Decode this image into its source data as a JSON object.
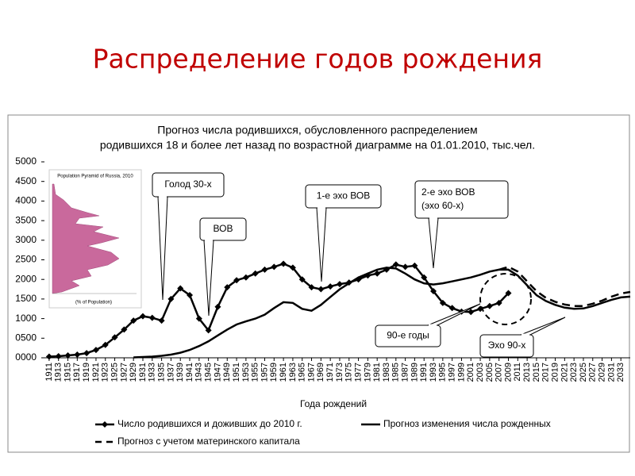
{
  "slide_title": "Распределение годов рождения",
  "chart_data": {
    "type": "line",
    "title_lines": [
      "Прогноз числа родившихся, обусловленного распределением",
      "родившихся 18 и более лет назад  по возрастной диаграмме на 01.01.2010, тыс.чел."
    ],
    "x_label": "Года рождений",
    "x": [
      1911,
      1913,
      1915,
      1917,
      1919,
      1921,
      1923,
      1925,
      1927,
      1929,
      1931,
      1933,
      1935,
      1937,
      1939,
      1941,
      1943,
      1945,
      1947,
      1949,
      1951,
      1953,
      1955,
      1957,
      1959,
      1961,
      1963,
      1965,
      1967,
      1969,
      1971,
      1973,
      1975,
      1977,
      1979,
      1981,
      1983,
      1985,
      1987,
      1989,
      1991,
      1993,
      1995,
      1997,
      1999,
      2001,
      2003,
      2005,
      2007,
      2009,
      2011,
      2013,
      2015,
      2017,
      2019,
      2021,
      2023,
      2025,
      2027,
      2029,
      2031,
      2033,
      2035
    ],
    "xlim": [
      1910,
      2035
    ],
    "xticks": [
      1911,
      1913,
      1915,
      1917,
      1919,
      1921,
      1923,
      1925,
      1927,
      1929,
      1931,
      1933,
      1935,
      1937,
      1939,
      1941,
      1943,
      1945,
      1947,
      1949,
      1951,
      1953,
      1955,
      1957,
      1959,
      1961,
      1963,
      1965,
      1967,
      1969,
      1971,
      1973,
      1975,
      1977,
      1979,
      1981,
      1983,
      1985,
      1987,
      1989,
      1991,
      1993,
      1995,
      1997,
      1999,
      2001,
      2003,
      2005,
      2007,
      2009,
      2011,
      2013,
      2015,
      2017,
      2019,
      2021,
      2023,
      2025,
      2027,
      2029,
      2031,
      2033
    ],
    "ylim": [
      0,
      5000
    ],
    "yticks": [
      {
        "value": 0,
        "label": "0000"
      },
      {
        "value": 500,
        "label": "0500"
      },
      1000,
      1500,
      2000,
      2500,
      3000,
      3500,
      4000,
      4500,
      5000
    ],
    "series": [
      {
        "name": "Число родившихся и доживших до 2010 г.",
        "color": "#000000",
        "marker": "diamond",
        "dash": false,
        "values": [
          30,
          40,
          60,
          80,
          120,
          200,
          330,
          520,
          720,
          950,
          1060,
          1020,
          950,
          1500,
          1770,
          1600,
          1000,
          700,
          1300,
          1800,
          1980,
          2050,
          2150,
          2250,
          2320,
          2400,
          2300,
          2000,
          1800,
          1750,
          1820,
          1880,
          1920,
          2000,
          2100,
          2150,
          2250,
          2380,
          2320,
          2350,
          2050,
          1700,
          1400,
          1270,
          1180,
          1170,
          1250,
          1320,
          1400,
          1650,
          null,
          null,
          null,
          null,
          null,
          null,
          null,
          null,
          null,
          null,
          null,
          null,
          null
        ]
      },
      {
        "name": "Прогноз изменения числа рожденных",
        "color": "#000000",
        "marker": "none",
        "dash": false,
        "values": [
          null,
          null,
          null,
          null,
          null,
          null,
          null,
          null,
          null,
          10,
          20,
          30,
          50,
          80,
          130,
          200,
          300,
          420,
          570,
          720,
          850,
          930,
          1000,
          1100,
          1270,
          1420,
          1400,
          1250,
          1200,
          1350,
          1550,
          1750,
          1900,
          2050,
          2150,
          2250,
          2300,
          2280,
          2150,
          2000,
          1900,
          1870,
          1900,
          1950,
          2000,
          2050,
          2120,
          2200,
          2250,
          2250,
          2100,
          1850,
          1600,
          1450,
          1350,
          1280,
          1250,
          1260,
          1320,
          1400,
          1480,
          1540,
          1560
        ]
      },
      {
        "name": "Прогноз с учетом материнского капитала",
        "color": "#000000",
        "marker": "none",
        "dash": true,
        "values": [
          null,
          null,
          null,
          null,
          null,
          null,
          null,
          null,
          null,
          null,
          null,
          null,
          null,
          null,
          null,
          null,
          null,
          null,
          null,
          null,
          null,
          null,
          null,
          null,
          null,
          null,
          null,
          null,
          null,
          null,
          null,
          null,
          null,
          null,
          null,
          null,
          null,
          null,
          null,
          null,
          null,
          null,
          null,
          null,
          null,
          null,
          null,
          null,
          2250,
          2320,
          2200,
          1950,
          1700,
          1530,
          1430,
          1360,
          1320,
          1320,
          1380,
          1460,
          1560,
          1640,
          1680
        ]
      }
    ],
    "annotations": [
      [
        "Голод 30-х"
      ],
      [
        "ВОВ"
      ],
      [
        "1-е эхо ВОВ"
      ],
      [
        "2-е эхо ВОВ",
        "(эхо 60-х)"
      ],
      [
        "90-е годы"
      ],
      [
        "Эхо 90-х"
      ]
    ],
    "inset": {
      "title": "Population Pyramid of Russia, 2010",
      "x_label": "(% of Population)"
    }
  }
}
